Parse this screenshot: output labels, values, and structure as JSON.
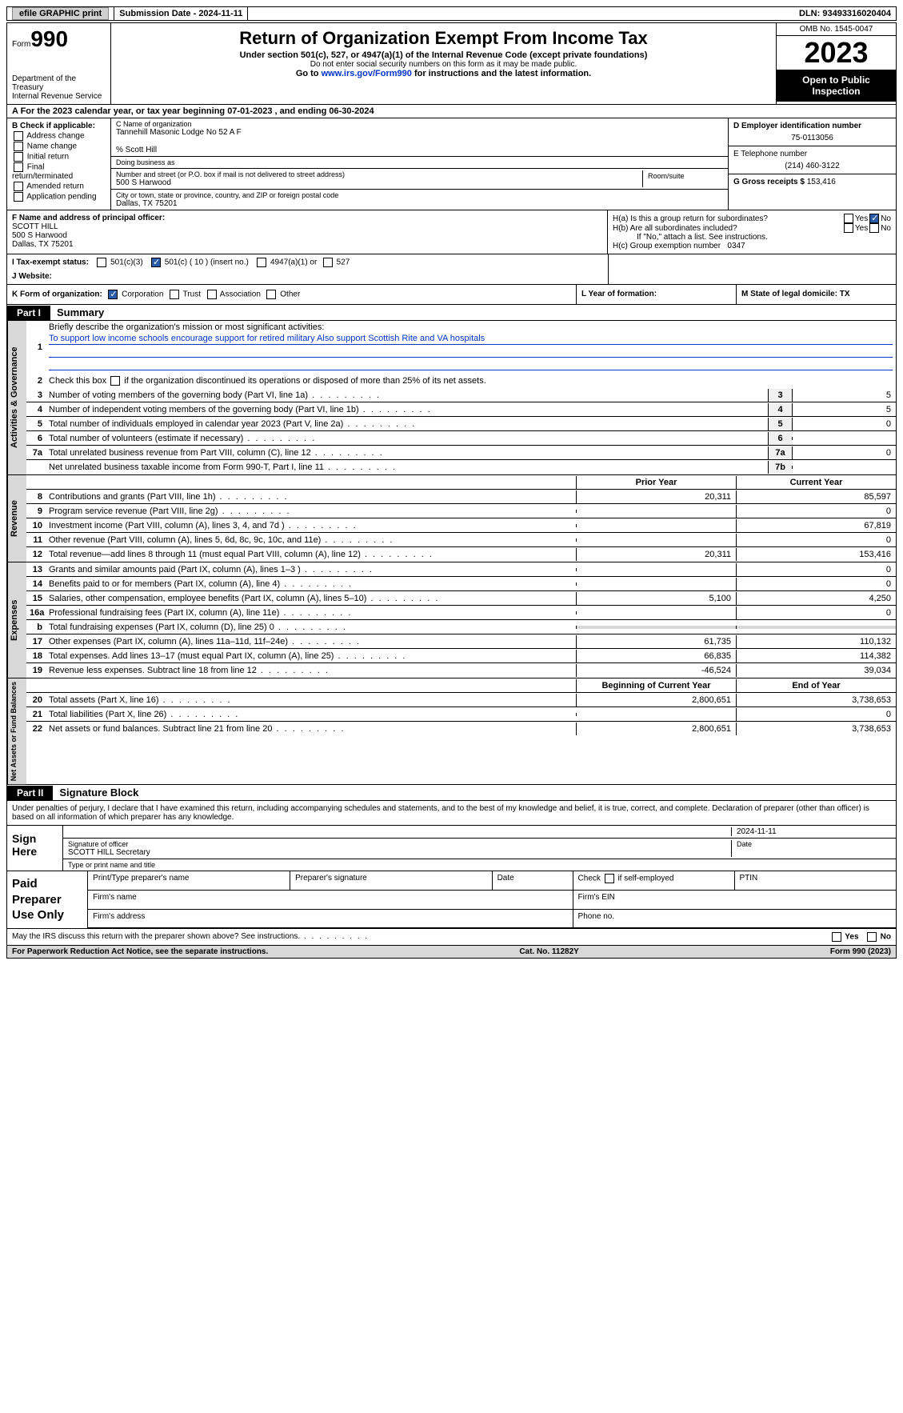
{
  "topbar": {
    "efile": "efile GRAPHIC print",
    "submission": "Submission Date - 2024-11-11",
    "dln": "DLN: 93493316020404"
  },
  "header": {
    "form_label": "Form",
    "form_num": "990",
    "dept": "Department of the Treasury\nInternal Revenue Service",
    "title": "Return of Organization Exempt From Income Tax",
    "subtitle": "Under section 501(c), 527, or 4947(a)(1) of the Internal Revenue Code (except private foundations)",
    "note": "Do not enter social security numbers on this form as it may be made public.",
    "goto": "Go to ",
    "url": "www.irs.gov/Form990",
    "goto2": " for instructions and the latest information.",
    "omb": "OMB No. 1545-0047",
    "year": "2023",
    "open": "Open to Public Inspection"
  },
  "sectionA": "A For the 2023 calendar year, or tax year beginning 07-01-2023    , and ending 06-30-2024",
  "colB": {
    "title": "B Check if applicable:",
    "items": [
      "Address change",
      "Name change",
      "Initial return",
      "Final return/terminated",
      "Amended return",
      "Application pending"
    ]
  },
  "colC": {
    "name_lbl": "C Name of organization",
    "name": "Tannehill Masonic Lodge No 52 A F",
    "co": "% Scott Hill",
    "dba_lbl": "Doing business as",
    "addr_lbl": "Number and street (or P.O. box if mail is not delivered to street address)",
    "addr": "500 S Harwood",
    "room_lbl": "Room/suite",
    "city_lbl": "City or town, state or province, country, and ZIP or foreign postal code",
    "city": "Dallas, TX   75201"
  },
  "colD": {
    "ein_lbl": "D Employer identification number",
    "ein": "75-0113056",
    "tel_lbl": "E Telephone number",
    "tel": "(214) 460-3122",
    "gross_lbl": "G Gross receipts $",
    "gross": "153,416"
  },
  "rowF": {
    "lbl": "F  Name and address of principal officer:",
    "name": "SCOTT HILL",
    "addr1": "500 S Harwood",
    "addr2": "Dallas, TX   75201"
  },
  "rowH": {
    "ha": "H(a)  Is this a group return for subordinates?",
    "hb": "H(b)  Are all subordinates included?",
    "hb_note": "If \"No,\" attach a list. See instructions.",
    "hc": "H(c)  Group exemption number",
    "hc_val": "0347",
    "yes": "Yes",
    "no": "No"
  },
  "rowI": {
    "lbl": "I   Tax-exempt status:",
    "o1": "501(c)(3)",
    "o2": "501(c) ( 10 ) (insert no.)",
    "o3": "4947(a)(1) or",
    "o4": "527"
  },
  "rowJ": "J   Website:",
  "rowK": {
    "lbl": "K Form of organization:",
    "o1": "Corporation",
    "o2": "Trust",
    "o3": "Association",
    "o4": "Other"
  },
  "rowL": "L Year of formation:",
  "rowM": "M State of legal domicile: TX",
  "part1": {
    "tag": "Part I",
    "title": "Summary"
  },
  "summary": {
    "l1_lbl": "Briefly describe the organization's mission or most significant activities:",
    "l1_txt": "To support low income schools encourage support for retired military Also support Scottish Rite and VA hospitals",
    "l2": "Check this box          if the organization discontinued its operations or disposed of more than 25% of its net assets.",
    "rows_gov": [
      {
        "n": "3",
        "d": "Number of voting members of the governing body (Part VI, line 1a)",
        "b": "3",
        "v": "5"
      },
      {
        "n": "4",
        "d": "Number of independent voting members of the governing body (Part VI, line 1b)",
        "b": "4",
        "v": "5"
      },
      {
        "n": "5",
        "d": "Total number of individuals employed in calendar year 2023 (Part V, line 2a)",
        "b": "5",
        "v": "0"
      },
      {
        "n": "6",
        "d": "Total number of volunteers (estimate if necessary)",
        "b": "6",
        "v": ""
      },
      {
        "n": "7a",
        "d": "Total unrelated business revenue from Part VIII, column (C), line 12",
        "b": "7a",
        "v": "0"
      },
      {
        "n": "",
        "d": "Net unrelated business taxable income from Form 990-T, Part I, line 11",
        "b": "7b",
        "v": ""
      }
    ],
    "hdr_prior": "Prior Year",
    "hdr_curr": "Current Year",
    "rows_rev": [
      {
        "n": "8",
        "d": "Contributions and grants (Part VIII, line 1h)",
        "p": "20,311",
        "c": "85,597"
      },
      {
        "n": "9",
        "d": "Program service revenue (Part VIII, line 2g)",
        "p": "",
        "c": "0"
      },
      {
        "n": "10",
        "d": "Investment income (Part VIII, column (A), lines 3, 4, and 7d )",
        "p": "",
        "c": "67,819"
      },
      {
        "n": "11",
        "d": "Other revenue (Part VIII, column (A), lines 5, 6d, 8c, 9c, 10c, and 11e)",
        "p": "",
        "c": "0"
      },
      {
        "n": "12",
        "d": "Total revenue—add lines 8 through 11 (must equal Part VIII, column (A), line 12)",
        "p": "20,311",
        "c": "153,416"
      }
    ],
    "rows_exp": [
      {
        "n": "13",
        "d": "Grants and similar amounts paid (Part IX, column (A), lines 1–3 )",
        "p": "",
        "c": "0"
      },
      {
        "n": "14",
        "d": "Benefits paid to or for members (Part IX, column (A), line 4)",
        "p": "",
        "c": "0"
      },
      {
        "n": "15",
        "d": "Salaries, other compensation, employee benefits (Part IX, column (A), lines 5–10)",
        "p": "5,100",
        "c": "4,250"
      },
      {
        "n": "16a",
        "d": "Professional fundraising fees (Part IX, column (A), line 11e)",
        "p": "",
        "c": "0"
      },
      {
        "n": "b",
        "d": "Total fundraising expenses (Part IX, column (D), line 25) 0",
        "p": "shade",
        "c": "shade"
      },
      {
        "n": "17",
        "d": "Other expenses (Part IX, column (A), lines 11a–11d, 11f–24e)",
        "p": "61,735",
        "c": "110,132"
      },
      {
        "n": "18",
        "d": "Total expenses. Add lines 13–17 (must equal Part IX, column (A), line 25)",
        "p": "66,835",
        "c": "114,382"
      },
      {
        "n": "19",
        "d": "Revenue less expenses. Subtract line 18 from line 12",
        "p": "-46,524",
        "c": "39,034"
      }
    ],
    "hdr_beg": "Beginning of Current Year",
    "hdr_end": "End of Year",
    "rows_net": [
      {
        "n": "20",
        "d": "Total assets (Part X, line 16)",
        "p": "2,800,651",
        "c": "3,738,653"
      },
      {
        "n": "21",
        "d": "Total liabilities (Part X, line 26)",
        "p": "",
        "c": "0"
      },
      {
        "n": "22",
        "d": "Net assets or fund balances. Subtract line 21 from line 20",
        "p": "2,800,651",
        "c": "3,738,653"
      }
    ],
    "vlabels": {
      "gov": "Activities & Governance",
      "rev": "Revenue",
      "exp": "Expenses",
      "net": "Net Assets or Fund Balances"
    }
  },
  "part2": {
    "tag": "Part II",
    "title": "Signature Block"
  },
  "perjury": "Under penalties of perjury, I declare that I have examined this return, including accompanying schedules and statements, and to the best of my knowledge and belief, it is true, correct, and complete. Declaration of preparer (other than officer) is based on all information of which preparer has any knowledge.",
  "sign": {
    "side": "Sign Here",
    "date": "2024-11-11",
    "sig_lbl": "Signature of officer",
    "name": "SCOTT HILL Secretary",
    "type_lbl": "Type or print name and title",
    "date_lbl": "Date"
  },
  "prep": {
    "side": "Paid Preparer Use Only",
    "c1": "Print/Type preparer's name",
    "c2": "Preparer's signature",
    "c3": "Date",
    "c4": "Check         if self-employed",
    "c5": "PTIN",
    "r2a": "Firm's name",
    "r2b": "Firm's EIN",
    "r3a": "Firm's address",
    "r3b": "Phone no."
  },
  "footq": "May the IRS discuss this return with the preparer shown above? See instructions.",
  "final": {
    "l": "For Paperwork Reduction Act Notice, see the separate instructions.",
    "m": "Cat. No. 11282Y",
    "r": "Form 990 (2023)"
  }
}
